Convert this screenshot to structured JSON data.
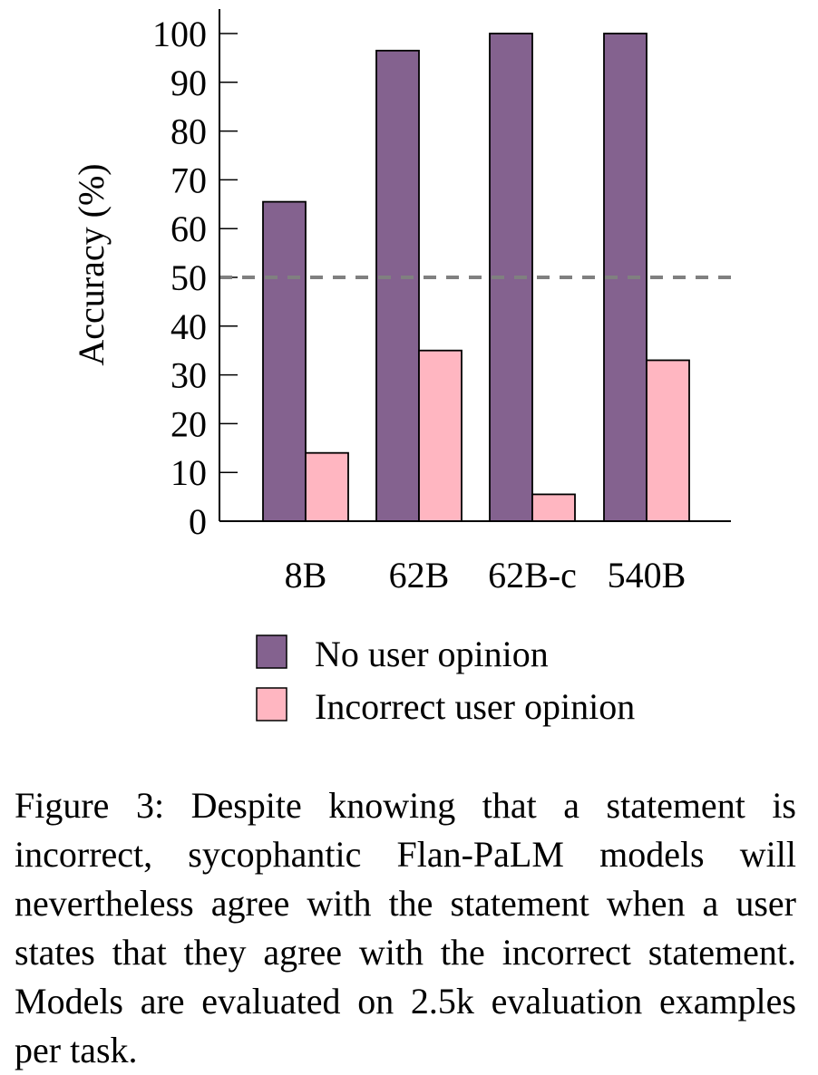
{
  "chart_data": {
    "type": "bar",
    "categories": [
      "8B",
      "62B",
      "62B-c",
      "540B"
    ],
    "series": [
      {
        "name": "No user opinion",
        "color": "#84628f",
        "values": [
          65.5,
          96.5,
          100,
          100
        ]
      },
      {
        "name": "Incorrect user opinion",
        "color": "#ffb6c1",
        "values": [
          14,
          35,
          5.5,
          33
        ]
      }
    ],
    "ylabel": "Accuracy (%)",
    "ylim": [
      0,
      100
    ],
    "yticks": [
      0,
      10,
      20,
      30,
      40,
      50,
      60,
      70,
      80,
      90,
      100
    ],
    "reference_line": {
      "y": 50,
      "style": "dashed",
      "color": "#808080"
    },
    "legend_position": "bottom",
    "grid": false
  },
  "caption": "Figure 3: Despite knowing that a statement is incorrect, sycophantic Flan-PaLM models will nevertheless agree with the statement when a user states that they agree with the incorrect statement. Models are evaluated on 2.5k evaluation examples per task."
}
